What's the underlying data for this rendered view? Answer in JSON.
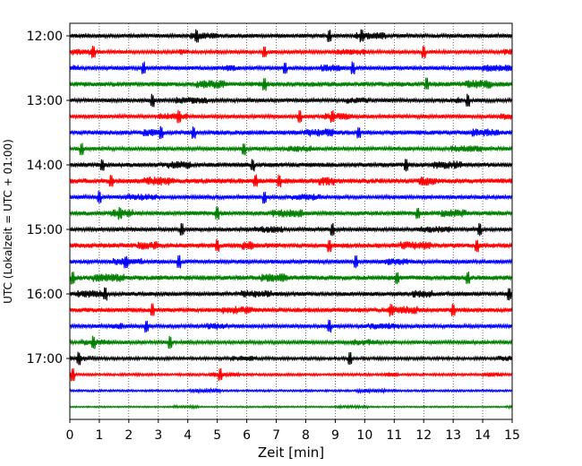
{
  "chart_data": {
    "type": "helicorder",
    "title": "",
    "xlabel": "Zeit  [min]",
    "ylabel": "UTC (Lokalzeit = UTC + 01:00)",
    "xlim": [
      0,
      15
    ],
    "x_ticks": [
      "0",
      "1",
      "2",
      "3",
      "4",
      "5",
      "6",
      "7",
      "8",
      "9",
      "10",
      "11",
      "12",
      "13",
      "14",
      "15"
    ],
    "y_ticks": [
      "12:00",
      "13:00",
      "14:00",
      "15:00",
      "16:00",
      "17:00"
    ],
    "minutes_per_line": 15,
    "grid_x": true,
    "line_colors": [
      "#000000",
      "#ff0000",
      "#0000ff",
      "#008000"
    ],
    "lines": [
      {
        "start": "12:00",
        "color": "#000000",
        "noise": 1.6,
        "spikes": [
          4.3,
          8.8,
          9.9
        ]
      },
      {
        "start": "12:15",
        "color": "#ff0000",
        "noise": 1.4,
        "spikes": [
          0.8,
          6.6,
          12.0
        ]
      },
      {
        "start": "12:30",
        "color": "#0000ff",
        "noise": 1.6,
        "spikes": [
          2.5,
          7.3,
          9.6
        ]
      },
      {
        "start": "12:45",
        "color": "#008000",
        "noise": 1.9,
        "spikes": [
          6.6,
          12.1
        ]
      },
      {
        "start": "13:00",
        "color": "#000000",
        "noise": 1.5,
        "spikes": [
          2.8,
          13.5
        ]
      },
      {
        "start": "13:15",
        "color": "#ff0000",
        "noise": 1.5,
        "spikes": [
          3.7,
          7.8,
          8.9
        ]
      },
      {
        "start": "13:30",
        "color": "#0000ff",
        "noise": 1.8,
        "spikes": [
          3.1,
          4.2,
          9.8
        ]
      },
      {
        "start": "13:45",
        "color": "#008000",
        "noise": 1.5,
        "spikes": [
          0.4,
          5.9
        ]
      },
      {
        "start": "14:00",
        "color": "#000000",
        "noise": 1.8,
        "spikes": [
          1.1,
          6.2,
          11.4
        ]
      },
      {
        "start": "14:15",
        "color": "#ff0000",
        "noise": 2.0,
        "spikes": [
          1.4,
          6.3,
          7.1
        ]
      },
      {
        "start": "14:30",
        "color": "#0000ff",
        "noise": 1.5,
        "spikes": [
          1.0,
          6.6
        ]
      },
      {
        "start": "14:45",
        "color": "#008000",
        "noise": 1.8,
        "spikes": [
          1.7,
          5.0,
          11.8
        ]
      },
      {
        "start": "15:00",
        "color": "#000000",
        "noise": 1.5,
        "spikes": [
          3.8,
          8.9,
          13.9
        ]
      },
      {
        "start": "15:15",
        "color": "#ff0000",
        "noise": 1.9,
        "spikes": [
          5.0,
          8.8,
          13.8
        ]
      },
      {
        "start": "15:30",
        "color": "#0000ff",
        "noise": 1.6,
        "spikes": [
          1.9,
          3.7,
          9.7
        ]
      },
      {
        "start": "15:45",
        "color": "#008000",
        "noise": 1.9,
        "spikes": [
          0.1,
          11.1,
          13.5
        ]
      },
      {
        "start": "16:00",
        "color": "#000000",
        "noise": 1.7,
        "spikes": [
          1.2,
          14.9
        ]
      },
      {
        "start": "16:15",
        "color": "#ff0000",
        "noise": 1.8,
        "spikes": [
          2.8,
          10.9,
          13.0
        ]
      },
      {
        "start": "16:30",
        "color": "#0000ff",
        "noise": 1.5,
        "spikes": [
          2.6,
          8.8
        ]
      },
      {
        "start": "16:45",
        "color": "#008000",
        "noise": 1.4,
        "spikes": [
          0.8,
          3.4
        ]
      },
      {
        "start": "17:00",
        "color": "#000000",
        "noise": 1.2,
        "spikes": [
          0.3,
          9.5
        ]
      },
      {
        "start": "17:15",
        "color": "#ff0000",
        "noise": 1.0,
        "spikes": [
          0.1,
          5.1
        ]
      },
      {
        "start": "17:30",
        "color": "#0000ff",
        "noise": 0.8,
        "spikes": []
      },
      {
        "start": "17:45",
        "color": "#008000",
        "noise": 0.6,
        "spikes": []
      }
    ]
  }
}
